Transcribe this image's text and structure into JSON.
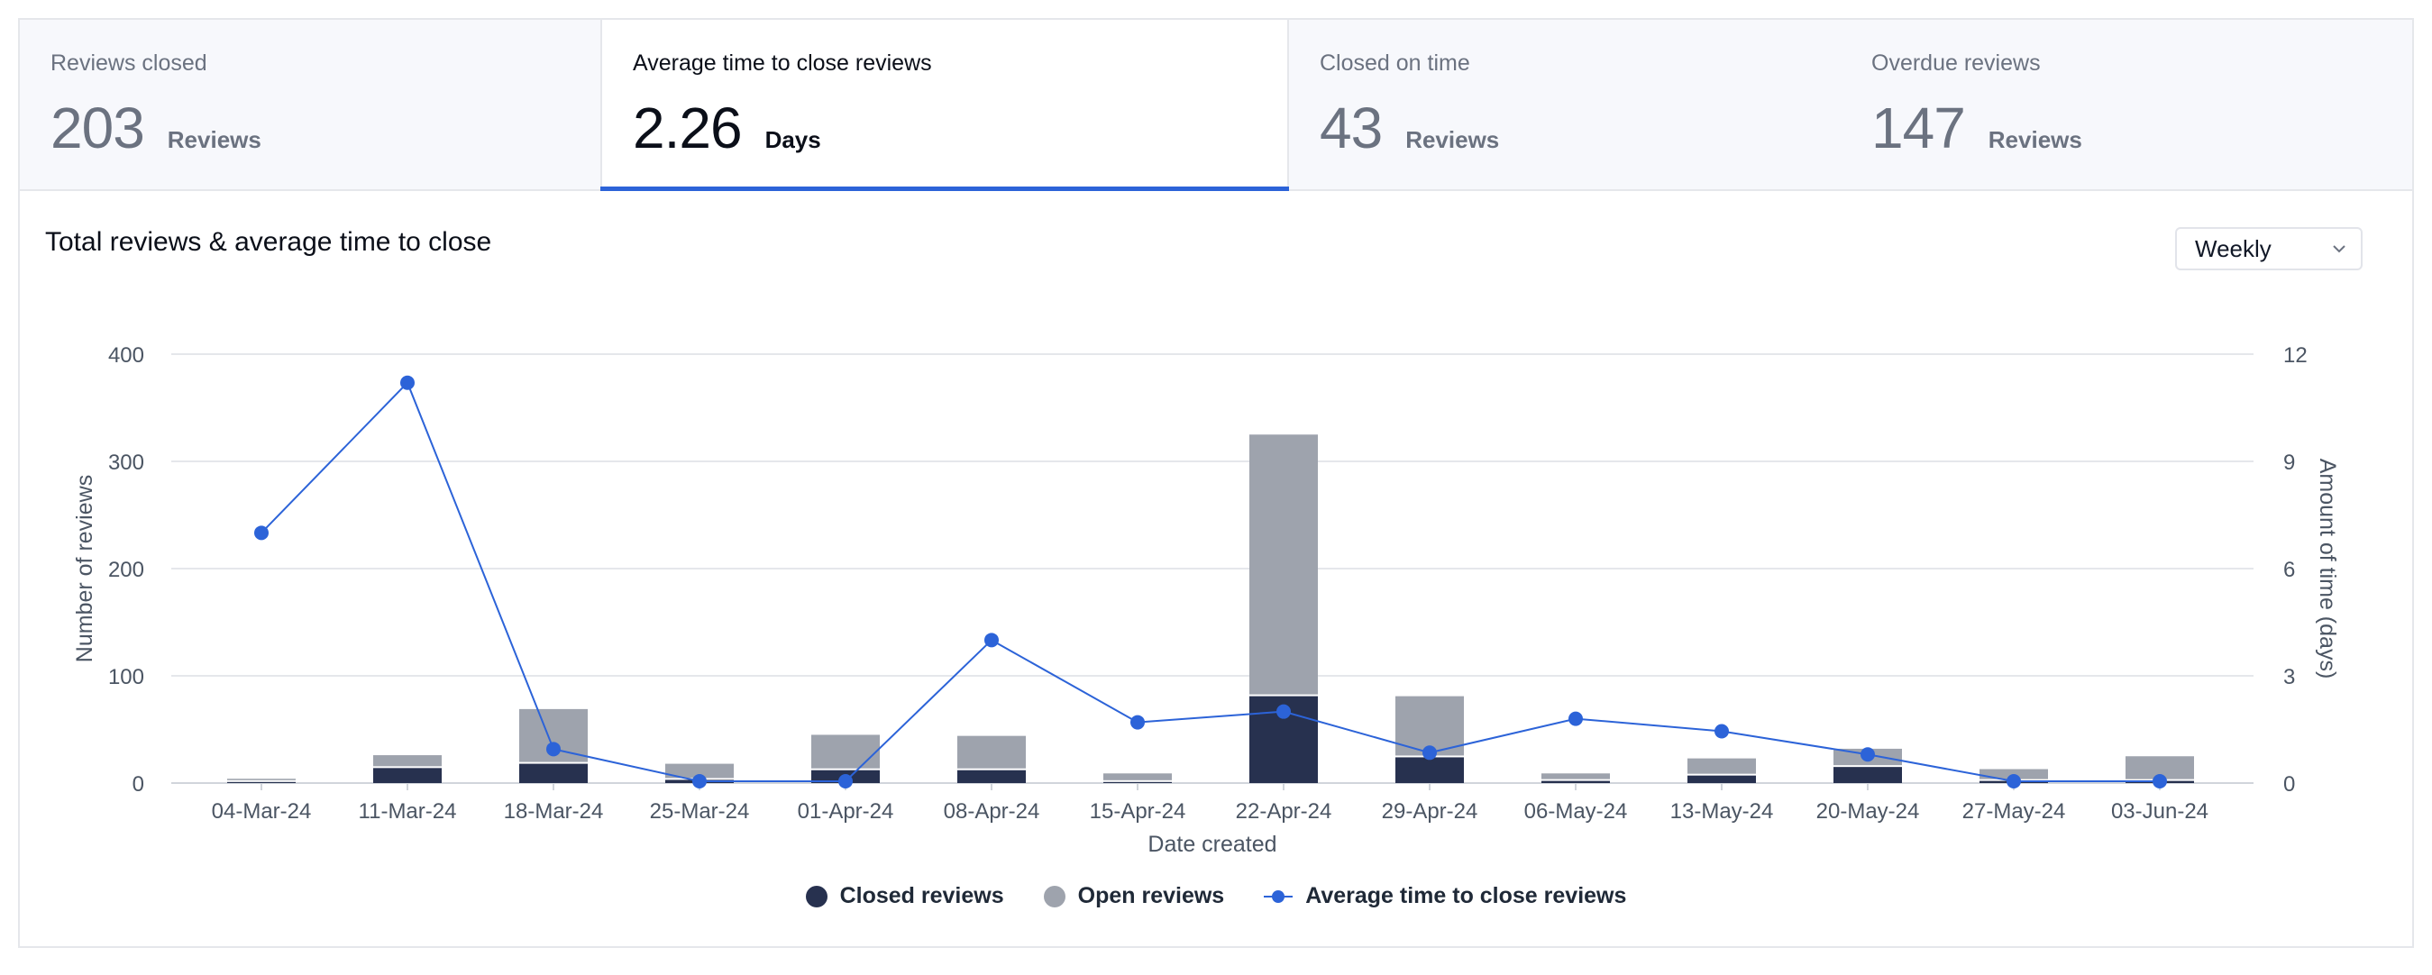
{
  "tabs": [
    {
      "label": "Reviews closed",
      "value": "203",
      "unit": "Reviews"
    },
    {
      "label": "Average time to close reviews",
      "value": "2.26",
      "unit": "Days"
    },
    {
      "label": "Closed on time",
      "value": "43",
      "unit": "Reviews"
    },
    {
      "label": "Overdue reviews",
      "value": "147",
      "unit": "Reviews"
    }
  ],
  "period_select": {
    "value": "Weekly"
  },
  "colors": {
    "closed": "#27314f",
    "open": "#9ea3ad",
    "line": "#2c63d8",
    "grid": "#e5e7eb",
    "axis_text": "#4b5563"
  },
  "legend": {
    "closed": "Closed reviews",
    "open": "Open reviews",
    "avg": "Average time to close reviews"
  },
  "chart_data": {
    "type": "bar",
    "title": "Total reviews & average time to close",
    "xlabel": "Date created",
    "ylabel": "Number of reviews",
    "y2label": "Amount of time (days)",
    "ylim": [
      0,
      400
    ],
    "y2lim": [
      0,
      12
    ],
    "yticks": [
      "0",
      "100",
      "200",
      "300",
      "400"
    ],
    "y2ticks": [
      "0",
      "3",
      "6",
      "9",
      "12"
    ],
    "categories": [
      "04-Mar-24",
      "11-Mar-24",
      "18-Mar-24",
      "25-Mar-24",
      "01-Apr-24",
      "08-Apr-24",
      "15-Apr-24",
      "22-Apr-24",
      "29-Apr-24",
      "06-May-24",
      "13-May-24",
      "20-May-24",
      "27-May-24",
      "03-Jun-24"
    ],
    "series": [
      {
        "name": "Closed reviews",
        "kind": "bar",
        "stack": "reviews",
        "values": [
          1,
          14,
          18,
          3,
          12,
          12,
          1,
          81,
          24,
          2,
          7,
          15,
          2,
          2
        ]
      },
      {
        "name": "Open reviews",
        "kind": "bar",
        "stack": "reviews",
        "values": [
          3,
          12,
          51,
          15,
          33,
          32,
          8,
          244,
          57,
          7,
          16,
          17,
          11,
          23
        ]
      },
      {
        "name": "Average time to close reviews",
        "kind": "line",
        "axis": "right",
        "values": [
          7.0,
          11.2,
          0.95,
          0.05,
          0.05,
          4.0,
          1.7,
          2.0,
          0.85,
          1.8,
          1.45,
          0.8,
          0.05,
          0.05
        ]
      }
    ],
    "legend_position": "bottom-center",
    "grid": true
  }
}
